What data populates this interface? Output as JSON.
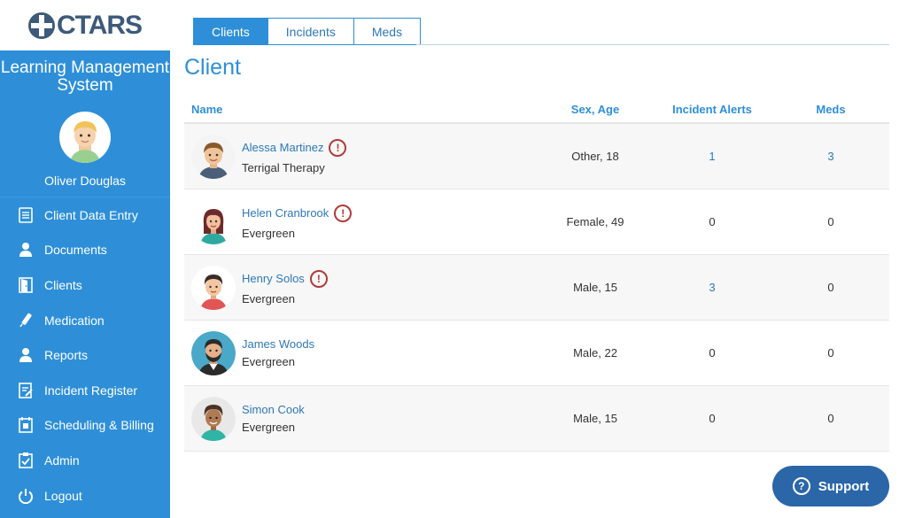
{
  "brand": {
    "logo_text": "CTARS"
  },
  "sidebar": {
    "app_title": "Learning Management System",
    "user_name": "Oliver Douglas",
    "items": [
      {
        "label": "Client Data Entry",
        "icon": "document-list-icon"
      },
      {
        "label": "Documents",
        "icon": "person-icon"
      },
      {
        "label": "Clients",
        "icon": "door-icon"
      },
      {
        "label": "Medication",
        "icon": "syringe-icon"
      },
      {
        "label": "Reports",
        "icon": "person-icon"
      },
      {
        "label": "Incident Register",
        "icon": "clipboard-edit-icon"
      },
      {
        "label": "Scheduling & Billing",
        "icon": "calendar-icon"
      },
      {
        "label": "Admin",
        "icon": "clipboard-check-icon"
      },
      {
        "label": "Logout",
        "icon": "power-icon"
      }
    ]
  },
  "tabs": [
    {
      "label": "Clients",
      "active": true
    },
    {
      "label": "Incidents",
      "active": false
    },
    {
      "label": "Meds",
      "active": false
    }
  ],
  "main": {
    "title": "Client",
    "columns": {
      "name": "Name",
      "sex_age": "Sex, Age",
      "incident_alerts": "Incident Alerts",
      "meds": "Meds"
    },
    "rows": [
      {
        "name": "Alessa Martinez",
        "org": "Terrigal Therapy",
        "sex_age": "Other, 18",
        "incidents": "1",
        "meds": "3",
        "alert": "!"
      },
      {
        "name": "Helen Cranbrook",
        "org": "Evergreen",
        "sex_age": "Female, 49",
        "incidents": "0",
        "meds": "0",
        "alert": "!"
      },
      {
        "name": "Henry Solos",
        "org": "Evergreen",
        "sex_age": "Male, 15",
        "incidents": "3",
        "meds": "0",
        "alert": "!"
      },
      {
        "name": "James Woods",
        "org": "Evergreen",
        "sex_age": "Male, 22",
        "incidents": "0",
        "meds": "0"
      },
      {
        "name": "Simon Cook",
        "org": "Evergreen",
        "sex_age": "Male, 15",
        "incidents": "0",
        "meds": "0"
      }
    ]
  },
  "support": {
    "label": "Support",
    "icon": "?"
  },
  "colors": {
    "accent": "#2e8fd8",
    "alert": "#b23a3a",
    "support": "#2a66a8"
  }
}
